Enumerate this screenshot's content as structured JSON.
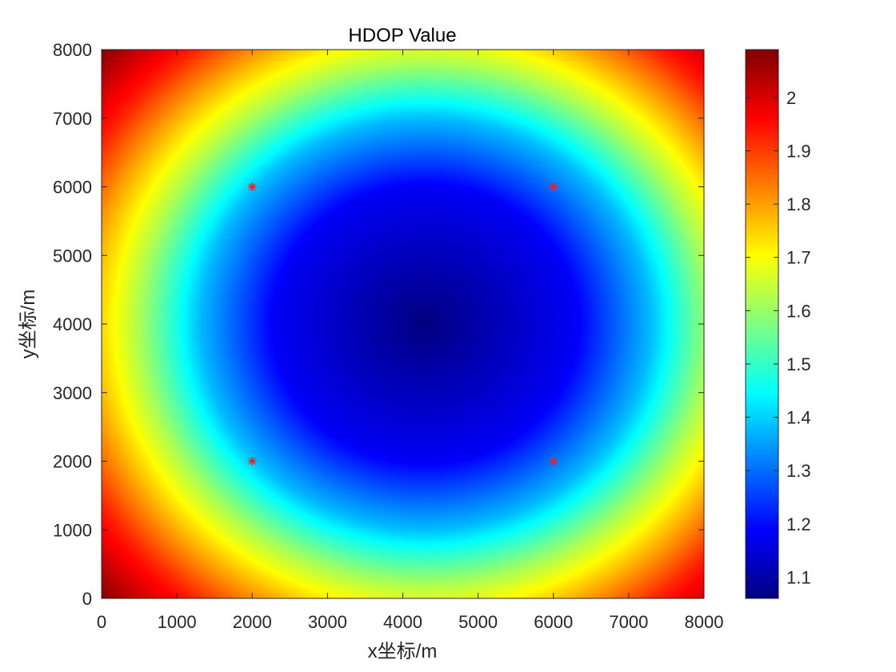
{
  "chart_data": {
    "type": "heatmap",
    "title": "HDOP Value",
    "xlabel": "x坐标/m",
    "ylabel": "y坐标/m",
    "xlim": [
      0,
      8000
    ],
    "ylim": [
      0,
      8000
    ],
    "xticks": [
      0,
      1000,
      2000,
      3000,
      4000,
      5000,
      6000,
      7000,
      8000
    ],
    "yticks": [
      0,
      1000,
      2000,
      3000,
      4000,
      5000,
      6000,
      7000,
      8000
    ],
    "colormap": "jet",
    "clim": [
      1.06,
      2.09
    ],
    "colorbar_ticks": [
      1.1,
      1.2,
      1.3,
      1.4,
      1.5,
      1.6,
      1.7,
      1.8,
      1.9,
      2
    ],
    "field": {
      "center": [
        4300,
        4000
      ],
      "min_value": 1.06,
      "profile": [
        {
          "radius": 0,
          "value": 1.06
        },
        {
          "radius": 2000,
          "value": 1.18
        },
        {
          "radius": 3000,
          "value": 1.38
        },
        {
          "radius": 3800,
          "value": 1.62
        },
        {
          "radius": 4200,
          "value": 1.72
        },
        {
          "radius": 5000,
          "value": 1.92
        },
        {
          "radius": 5900,
          "value": 2.09
        }
      ]
    },
    "stations": {
      "marker": "*",
      "color": "#ff1a1a",
      "points": [
        {
          "x": 2000,
          "y": 6000
        },
        {
          "x": 6000,
          "y": 6000
        },
        {
          "x": 2000,
          "y": 2000
        },
        {
          "x": 6000,
          "y": 2000
        }
      ]
    },
    "grid": false
  }
}
